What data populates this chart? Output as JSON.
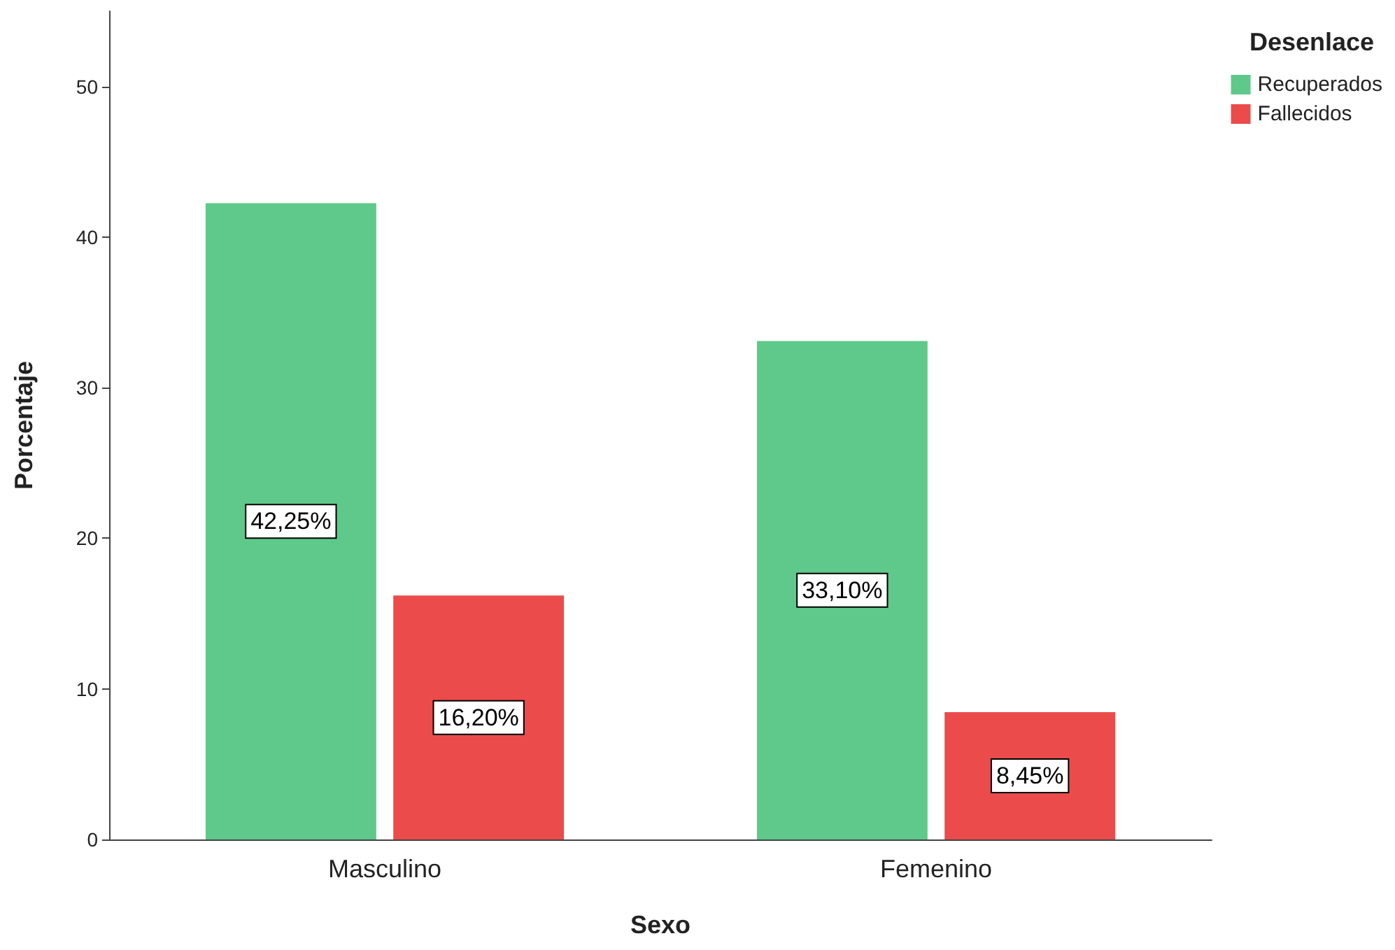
{
  "chart_data": {
    "type": "bar",
    "xlabel": "Sexo",
    "ylabel": "Porcentaje",
    "legend_title": "Desenlace",
    "categories": [
      "Masculino",
      "Femenino"
    ],
    "series": [
      {
        "name": "Recuperados",
        "color": "#5ec98a",
        "values": [
          42.25,
          33.1
        ],
        "value_labels": [
          "42,25%",
          "33,10%"
        ]
      },
      {
        "name": "Fallecidos",
        "color": "#eb4b4b",
        "values": [
          16.2,
          8.45
        ],
        "value_labels": [
          "16,20%",
          "8,45%"
        ]
      }
    ],
    "ylim": [
      0,
      55
    ],
    "yticks": [
      0,
      10,
      20,
      30,
      40,
      50
    ],
    "grid": false,
    "legend": "top right"
  }
}
